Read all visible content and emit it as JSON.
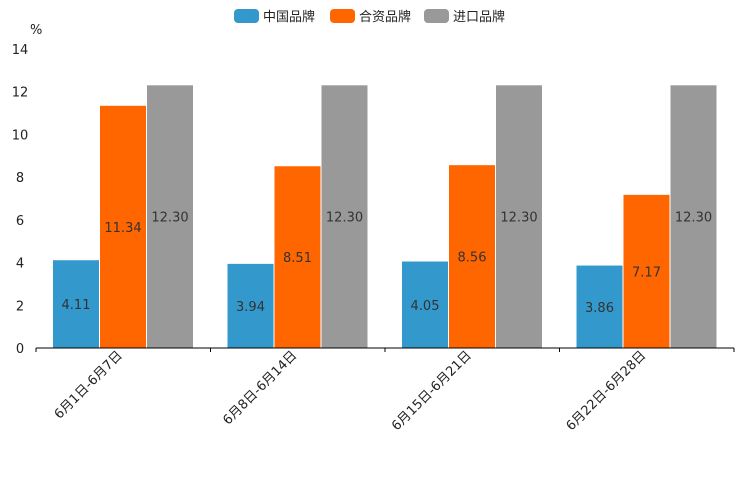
{
  "chart_data": {
    "type": "bar",
    "title": "",
    "xlabel": "",
    "ylabel": "%",
    "ylim": [
      0,
      14
    ],
    "yticks": [
      0,
      2,
      4,
      6,
      8,
      10,
      12,
      14
    ],
    "legend_position": "top-center",
    "categories": [
      "6月1日-6月7日",
      "6月8日-6月14日",
      "6月15日-6月21日",
      "6月22日-6月28日"
    ],
    "series": [
      {
        "name": "中国品牌",
        "color": "#3399cc",
        "values": [
          4.11,
          3.94,
          4.05,
          3.86
        ],
        "labels": [
          "4.11",
          "3.94",
          "4.05",
          "3.86"
        ]
      },
      {
        "name": "合资品牌",
        "color": "#ff6600",
        "values": [
          11.34,
          8.51,
          8.56,
          7.17
        ],
        "labels": [
          "11.34",
          "8.51",
          "8.56",
          "7.17"
        ]
      },
      {
        "name": "进口品牌",
        "color": "#999999",
        "values": [
          12.3,
          12.3,
          12.3,
          12.3
        ],
        "labels": [
          "12.30",
          "12.30",
          "12.30",
          "12.30"
        ]
      }
    ]
  }
}
